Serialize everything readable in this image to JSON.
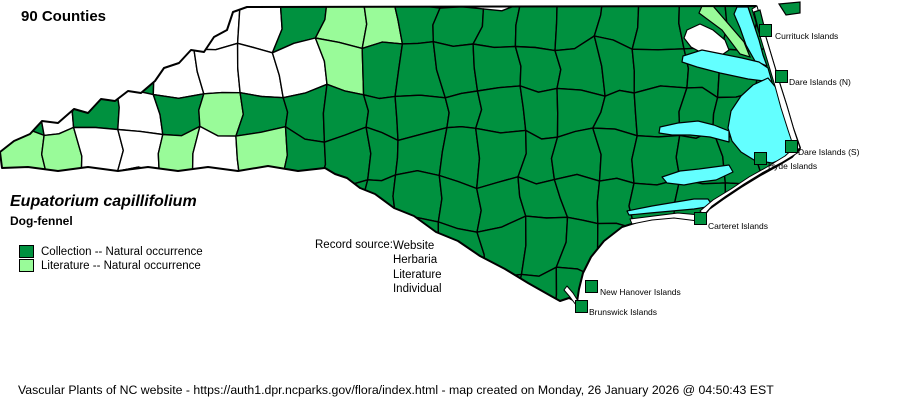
{
  "title": "90 Counties",
  "species": {
    "scientific_name": "Eupatorium capillifolium",
    "common_name": "Dog-fennel"
  },
  "legend": [
    {
      "label": "Collection -- Natural occurrence",
      "color": "#00913f"
    },
    {
      "label": "Literature -- Natural occurrence",
      "color": "#99fb99"
    }
  ],
  "record_source": {
    "label": "Record source:",
    "values": [
      "Website",
      "Herbaria",
      "Literature",
      "Individual"
    ]
  },
  "islands": [
    {
      "label": "Currituck Islands"
    },
    {
      "label": "Dare Islands (N)"
    },
    {
      "label": "Dare Islands (S)"
    },
    {
      "label": "Hyde Islands"
    },
    {
      "label": "Carteret Islands"
    },
    {
      "label": "New Hanover Islands"
    },
    {
      "label": "Brunswick Islands"
    }
  ],
  "footer": "Vascular Plants of NC website - https://auth1.dpr.ncparks.gov/flora/index.html - map created on Monday, 26 January 2026 @ 04:50:43 EST",
  "map": {
    "colors": {
      "collection": "#00913f",
      "literature": "#99fb99",
      "water": "#63ffff",
      "empty": "#ffffff",
      "border": "#000000"
    },
    "pattern": {
      "white_cells": [
        "5,0",
        "6,0",
        "4,1",
        "5,1",
        "6,1",
        "7,1",
        "1,2",
        "3,2",
        "2,3",
        "3,3",
        "5,3"
      ],
      "literature_cells": [
        "8,0",
        "9,0",
        "8,1",
        "5,2",
        "0,3",
        "1,3",
        "4,3",
        "6,3"
      ]
    }
  }
}
